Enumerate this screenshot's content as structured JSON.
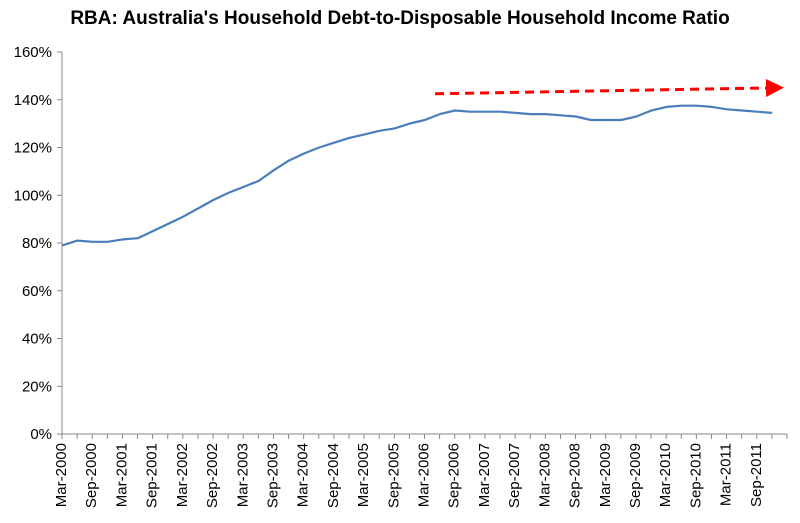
{
  "chart_data": {
    "type": "line",
    "title": "RBA: Australia's Household Debt-to-Disposable Household Income Ratio",
    "xlabel": "",
    "ylabel": "",
    "ylim": [
      0,
      160
    ],
    "yticks": [
      "0%",
      "20%",
      "40%",
      "60%",
      "80%",
      "100%",
      "120%",
      "140%",
      "160%"
    ],
    "xtick_labels": [
      "Mar-2000",
      "Sep-2000",
      "Mar-2001",
      "Sep-2001",
      "Mar-2002",
      "Sep-2002",
      "Mar-2003",
      "Sep-2003",
      "Mar-2004",
      "Sep-2004",
      "Mar-2005",
      "Sep-2005",
      "Mar-2006",
      "Sep-2006",
      "Mar-2007",
      "Sep-2007",
      "Mar-2008",
      "Sep-2008",
      "Mar-2009",
      "Sep-2009",
      "Mar-2010",
      "Sep-2010",
      "Mar-2011",
      "Sep-2011"
    ],
    "x": [
      "Mar-2000",
      "Jun-2000",
      "Sep-2000",
      "Dec-2000",
      "Mar-2001",
      "Jun-2001",
      "Sep-2001",
      "Dec-2001",
      "Mar-2002",
      "Jun-2002",
      "Sep-2002",
      "Dec-2002",
      "Mar-2003",
      "Jun-2003",
      "Sep-2003",
      "Dec-2003",
      "Mar-2004",
      "Jun-2004",
      "Sep-2004",
      "Dec-2004",
      "Mar-2005",
      "Jun-2005",
      "Sep-2005",
      "Dec-2005",
      "Mar-2006",
      "Jun-2006",
      "Sep-2006",
      "Dec-2006",
      "Mar-2007",
      "Jun-2007",
      "Sep-2007",
      "Dec-2007",
      "Mar-2008",
      "Jun-2008",
      "Sep-2008",
      "Dec-2008",
      "Mar-2009",
      "Jun-2009",
      "Sep-2009",
      "Dec-2009",
      "Mar-2010",
      "Jun-2010",
      "Sep-2010",
      "Dec-2010",
      "Mar-2011",
      "Jun-2011",
      "Sep-2011",
      "Dec-2011"
    ],
    "series": [
      {
        "values": [
          79,
          81,
          80.5,
          80.5,
          81.5,
          82,
          85,
          88,
          91,
          94.5,
          98,
          101,
          103.5,
          106,
          110.5,
          114.5,
          117.5,
          120,
          122,
          124,
          125.5,
          127,
          128,
          130,
          131.5,
          134,
          135.5,
          135,
          135,
          135,
          134.5,
          134,
          134,
          133.5,
          133,
          131.5,
          131.5,
          131.5,
          133,
          135.5,
          137,
          137.5,
          137.5,
          137,
          136,
          135.5,
          135,
          134.5
        ],
        "color": "#4a7ebb"
      }
    ],
    "annotation": {
      "type": "dashed-arrow",
      "color": "#ff0000",
      "y_start": 142.5,
      "y_end": 145
    },
    "grid": false,
    "legend": "none"
  }
}
